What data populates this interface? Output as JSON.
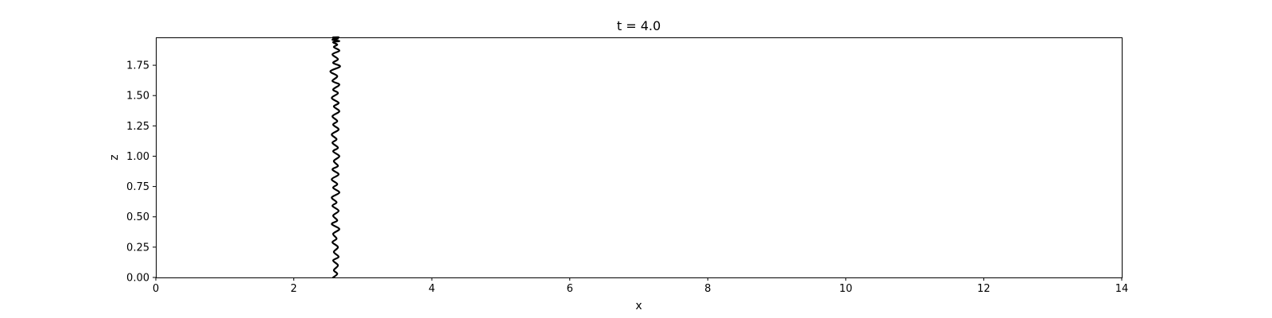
{
  "chart_data": {
    "type": "line",
    "title": "t = 4.0",
    "xlabel": "x",
    "ylabel": "z",
    "xlim": [
      0,
      14
    ],
    "ylim": [
      0,
      1.98
    ],
    "x_ticks": [
      0,
      2,
      4,
      6,
      8,
      10,
      12,
      14
    ],
    "x_tick_labels": [
      "0",
      "2",
      "4",
      "6",
      "8",
      "10",
      "12",
      "14"
    ],
    "y_ticks": [
      0.0,
      0.25,
      0.5,
      0.75,
      1.0,
      1.25,
      1.5,
      1.75
    ],
    "y_tick_labels": [
      "0.00",
      "0.25",
      "0.50",
      "0.75",
      "1.00",
      "1.25",
      "1.50",
      "1.75"
    ],
    "grid": false,
    "series": [
      {
        "color": "#000000",
        "x": [
          2.57,
          2.63,
          2.58,
          2.64,
          2.57,
          2.65,
          2.58,
          2.64,
          2.56,
          2.62,
          2.57,
          2.66,
          2.55,
          2.63,
          2.57,
          2.65,
          2.56,
          2.62,
          2.55,
          2.66,
          2.57,
          2.63,
          2.55,
          2.65,
          2.56,
          2.64,
          2.58,
          2.66,
          2.57,
          2.64,
          2.56,
          2.62,
          2.55,
          2.65,
          2.57,
          2.63,
          2.56,
          2.66,
          2.58,
          2.65,
          2.55,
          2.64,
          2.57,
          2.66,
          2.56,
          2.63,
          2.53,
          2.67,
          2.57,
          2.64,
          2.56,
          2.66,
          2.58,
          2.63,
          2.57,
          2.66,
          2.56,
          2.64,
          2.57,
          2.65,
          2.57
        ],
        "y": [
          0.0,
          0.03,
          0.06,
          0.1,
          0.14,
          0.17,
          0.21,
          0.25,
          0.29,
          0.32,
          0.36,
          0.4,
          0.44,
          0.47,
          0.51,
          0.55,
          0.59,
          0.62,
          0.66,
          0.7,
          0.74,
          0.77,
          0.81,
          0.85,
          0.89,
          0.92,
          0.96,
          1.0,
          1.04,
          1.07,
          1.11,
          1.14,
          1.18,
          1.22,
          1.26,
          1.29,
          1.33,
          1.37,
          1.41,
          1.44,
          1.48,
          1.52,
          1.55,
          1.59,
          1.62,
          1.66,
          1.7,
          1.74,
          1.77,
          1.8,
          1.84,
          1.87,
          1.9,
          1.92,
          1.94,
          1.95,
          1.96,
          1.97,
          1.97,
          1.98,
          1.98
        ]
      }
    ]
  }
}
